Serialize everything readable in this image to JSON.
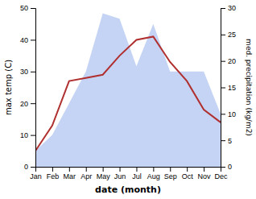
{
  "chart_data": {
    "type": "line",
    "xlabel": "date (month)",
    "ylabel": "max temp (C)",
    "y2label": "med. precipitation (kg/m2)",
    "categories": [
      "Jan",
      "Feb",
      "Mar",
      "Apr",
      "May",
      "Jun",
      "Jul",
      "Aug",
      "Sep",
      "Oct",
      "Nov",
      "Dec"
    ],
    "series": [
      {
        "type": "line",
        "color": "#b03030",
        "values": [
          5,
          13,
          27,
          28,
          29,
          35,
          40,
          41,
          33,
          27,
          18,
          14
        ]
      },
      {
        "type": "area",
        "color": "#c5d4f5",
        "axis": "y2",
        "values": [
          3,
          6,
          12,
          18,
          29,
          28,
          19,
          27,
          18,
          18,
          18,
          10
        ]
      }
    ],
    "ylim": [
      0,
      50
    ],
    "yticks": [
      0,
      10,
      20,
      30,
      40,
      50
    ],
    "y2lim": [
      0,
      30
    ],
    "y2ticks": [
      0,
      5,
      10,
      15,
      20,
      25,
      30
    ]
  }
}
